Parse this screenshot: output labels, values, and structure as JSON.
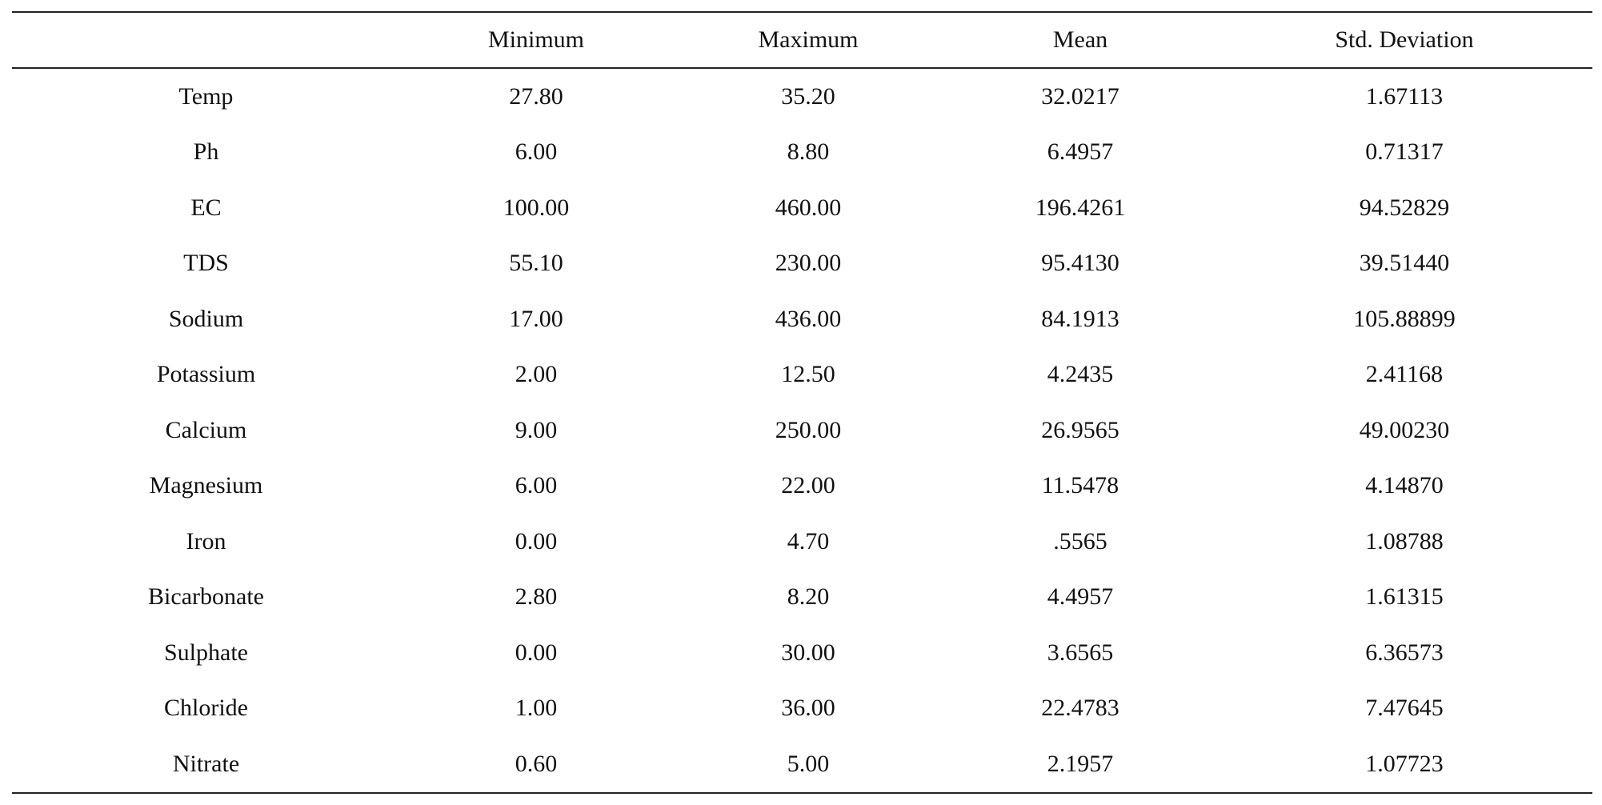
{
  "table": {
    "columns": [
      "",
      "Minimum",
      "Maximum",
      "Mean",
      "Std. Deviation"
    ],
    "rows": [
      [
        "Temp",
        "27.80",
        "35.20",
        "32.0217",
        "1.67113"
      ],
      [
        "Ph",
        "6.00",
        "8.80",
        "6.4957",
        "0.71317"
      ],
      [
        "EC",
        "100.00",
        "460.00",
        "196.4261",
        "94.52829"
      ],
      [
        "TDS",
        "55.10",
        "230.00",
        "95.4130",
        "39.51440"
      ],
      [
        "Sodium",
        "17.00",
        "436.00",
        "84.1913",
        "105.88899"
      ],
      [
        "Potassium",
        "2.00",
        "12.50",
        "4.2435",
        "2.41168"
      ],
      [
        "Calcium",
        "9.00",
        "250.00",
        "26.9565",
        "49.00230"
      ],
      [
        "Magnesium",
        "6.00",
        "22.00",
        "11.5478",
        "4.14870"
      ],
      [
        "Iron",
        "0.00",
        "4.70",
        ".5565",
        "1.08788"
      ],
      [
        "Bicarbonate",
        "2.80",
        "8.20",
        "4.4957",
        "1.61315"
      ],
      [
        "Sulphate",
        "0.00",
        "30.00",
        "3.6565",
        "6.36573"
      ],
      [
        "Chloride",
        "1.00",
        "36.00",
        "22.4783",
        "7.47645"
      ],
      [
        "Nitrate",
        "0.60",
        "5.00",
        "2.1957",
        "1.07723"
      ]
    ]
  }
}
